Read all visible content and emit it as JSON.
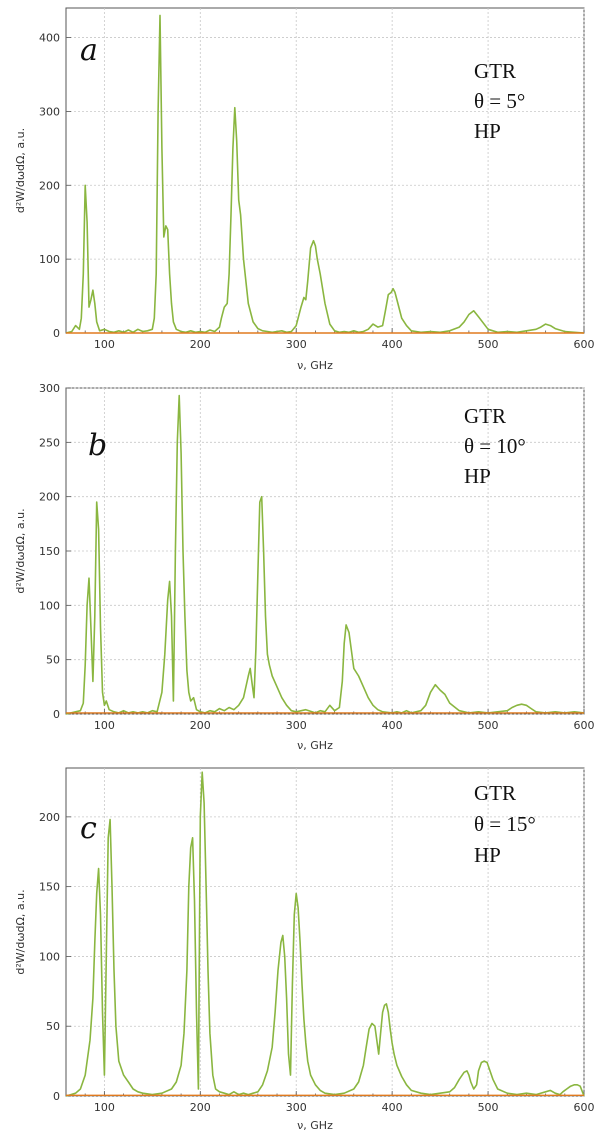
{
  "chart_data": [
    {
      "type": "line",
      "panel_label": "a",
      "annotation": [
        "GTR",
        "θ = 5°",
        "HP"
      ],
      "xlabel": "ν, GHz",
      "ylabel": "d²W/dωdΩ, a.u.",
      "xlim": [
        60,
        600
      ],
      "ylim": [
        0,
        440
      ],
      "xticks": [
        100,
        200,
        300,
        400,
        500,
        600
      ],
      "yticks": [
        0,
        100,
        200,
        300,
        400
      ],
      "grid": true,
      "colors": {
        "main": "#8ab640",
        "baseline": "#e07a1f"
      },
      "series": [
        {
          "x": [
            60,
            66,
            70,
            74,
            76,
            78,
            80,
            82,
            84,
            86,
            88,
            90,
            92,
            95,
            100,
            105,
            110,
            115,
            120,
            125,
            130,
            135,
            140,
            145,
            150,
            152,
            154,
            156,
            158,
            160,
            162,
            164,
            166,
            168,
            170,
            172,
            175,
            180,
            185,
            190,
            195,
            200,
            205,
            210,
            215,
            220,
            222,
            225,
            228,
            230,
            232,
            234,
            236,
            238,
            240,
            242,
            245,
            250,
            255,
            260,
            265,
            270,
            275,
            280,
            285,
            290,
            295,
            300,
            305,
            308,
            310,
            312,
            315,
            318,
            320,
            322,
            325,
            330,
            335,
            340,
            345,
            350,
            355,
            360,
            365,
            370,
            375,
            380,
            385,
            390,
            393,
            396,
            399,
            401,
            403,
            406,
            410,
            415,
            420,
            430,
            440,
            450,
            460,
            470,
            475,
            480,
            485,
            490,
            500,
            510,
            520,
            530,
            540,
            550,
            555,
            560,
            565,
            570,
            580,
            590,
            600
          ],
          "values": [
            0,
            2,
            10,
            5,
            20,
            80,
            200,
            150,
            35,
            45,
            58,
            40,
            15,
            3,
            5,
            2,
            1,
            3,
            1,
            4,
            1,
            5,
            2,
            3,
            5,
            20,
            80,
            300,
            430,
            250,
            130,
            145,
            140,
            80,
            40,
            15,
            5,
            2,
            1,
            3,
            1,
            2,
            1,
            4,
            2,
            8,
            20,
            35,
            40,
            80,
            160,
            250,
            305,
            260,
            180,
            160,
            100,
            40,
            15,
            6,
            3,
            2,
            1,
            2,
            3,
            1,
            2,
            10,
            35,
            48,
            45,
            70,
            115,
            125,
            118,
            100,
            80,
            40,
            12,
            3,
            1,
            2,
            1,
            3,
            1,
            2,
            5,
            12,
            8,
            10,
            30,
            52,
            55,
            60,
            55,
            40,
            20,
            10,
            3,
            1,
            2,
            1,
            3,
            8,
            15,
            25,
            30,
            22,
            5,
            1,
            2,
            1,
            3,
            5,
            8,
            12,
            10,
            6,
            2,
            1,
            0
          ]
        },
        {
          "x": [
            60,
            600
          ],
          "values": [
            0,
            0
          ]
        }
      ]
    },
    {
      "type": "line",
      "panel_label": "b",
      "annotation": [
        "GTR",
        "θ = 10°",
        "HP"
      ],
      "xlabel": "ν, GHz",
      "ylabel": "d²W/dωdΩ, a.u.",
      "xlim": [
        60,
        600
      ],
      "ylim": [
        0,
        300
      ],
      "xticks": [
        100,
        200,
        300,
        400,
        500,
        600
      ],
      "yticks": [
        0,
        50,
        100,
        150,
        200,
        250,
        300
      ],
      "grid": true,
      "colors": {
        "main": "#8ab640",
        "baseline": "#e07a1f"
      },
      "series": [
        {
          "x": [
            60,
            65,
            70,
            75,
            78,
            80,
            82,
            84,
            86,
            88,
            90,
            92,
            94,
            96,
            98,
            100,
            102,
            105,
            110,
            115,
            120,
            125,
            130,
            135,
            140,
            145,
            150,
            155,
            160,
            163,
            166,
            168,
            170,
            172,
            174,
            176,
            178,
            180,
            182,
            184,
            186,
            188,
            190,
            193,
            196,
            200,
            205,
            210,
            215,
            220,
            225,
            230,
            235,
            240,
            245,
            250,
            252,
            254,
            256,
            258,
            260,
            262,
            264,
            266,
            268,
            270,
            272,
            275,
            280,
            285,
            290,
            295,
            300,
            310,
            320,
            325,
            330,
            335,
            340,
            345,
            348,
            350,
            352,
            355,
            358,
            360,
            365,
            370,
            375,
            380,
            385,
            390,
            400,
            405,
            410,
            415,
            420,
            430,
            435,
            440,
            445,
            450,
            455,
            460,
            470,
            480,
            490,
            500,
            510,
            520,
            525,
            530,
            535,
            540,
            545,
            550,
            560,
            570,
            580,
            590,
            600
          ],
          "values": [
            0,
            1,
            2,
            3,
            10,
            45,
            100,
            125,
            80,
            30,
            90,
            195,
            170,
            80,
            20,
            8,
            12,
            4,
            2,
            1,
            3,
            1,
            2,
            1,
            2,
            1,
            3,
            2,
            20,
            55,
            105,
            122,
            90,
            12,
            150,
            250,
            293,
            240,
            150,
            90,
            40,
            20,
            12,
            15,
            4,
            2,
            1,
            3,
            2,
            5,
            3,
            6,
            4,
            8,
            15,
            35,
            42,
            28,
            15,
            60,
            130,
            195,
            200,
            150,
            90,
            55,
            45,
            35,
            25,
            15,
            8,
            3,
            2,
            4,
            1,
            3,
            2,
            8,
            3,
            6,
            30,
            65,
            82,
            75,
            55,
            42,
            35,
            25,
            15,
            8,
            4,
            2,
            1,
            2,
            1,
            3,
            1,
            3,
            8,
            20,
            27,
            22,
            18,
            10,
            3,
            1,
            2,
            1,
            2,
            3,
            6,
            8,
            9,
            8,
            5,
            2,
            1,
            2,
            1,
            2,
            1
          ]
        },
        {
          "x": [
            60,
            600
          ],
          "values": [
            1,
            1
          ]
        }
      ]
    },
    {
      "type": "line",
      "panel_label": "c",
      "annotation": [
        "GTR",
        "θ = 15°",
        "HP"
      ],
      "xlabel": "ν, GHz",
      "ylabel": "d²W/dωdΩ, a.u.",
      "xlim": [
        60,
        600
      ],
      "ylim": [
        0,
        235
      ],
      "xticks": [
        100,
        200,
        300,
        400,
        500,
        600
      ],
      "yticks": [
        0,
        50,
        100,
        150,
        200
      ],
      "grid": true,
      "colors": {
        "main": "#8ab640",
        "baseline": "#e07a1f"
      },
      "series": [
        {
          "x": [
            60,
            65,
            70,
            75,
            80,
            85,
            88,
            90,
            92,
            94,
            96,
            98,
            100,
            102,
            104,
            106,
            108,
            110,
            112,
            115,
            120,
            125,
            130,
            135,
            140,
            150,
            160,
            170,
            175,
            180,
            183,
            186,
            188,
            190,
            192,
            194,
            196,
            198,
            200,
            202,
            204,
            206,
            208,
            210,
            213,
            216,
            220,
            225,
            230,
            235,
            240,
            245,
            250,
            255,
            260,
            265,
            270,
            275,
            278,
            281,
            284,
            286,
            288,
            290,
            292,
            294,
            296,
            298,
            300,
            302,
            304,
            306,
            308,
            310,
            312,
            315,
            320,
            325,
            330,
            340,
            350,
            360,
            365,
            370,
            373,
            376,
            379,
            382,
            384,
            386,
            388,
            390,
            392,
            394,
            396,
            398,
            400,
            402,
            405,
            410,
            415,
            420,
            430,
            440,
            450,
            460,
            465,
            470,
            475,
            478,
            480,
            482,
            485,
            488,
            490,
            493,
            496,
            499,
            502,
            505,
            510,
            520,
            530,
            540,
            550,
            560,
            565,
            570,
            575,
            578,
            582,
            586,
            590,
            593,
            596,
            600
          ],
          "values": [
            0,
            1,
            2,
            5,
            15,
            40,
            70,
            110,
            145,
            163,
            130,
            60,
            15,
            100,
            185,
            198,
            150,
            90,
            50,
            25,
            15,
            10,
            5,
            3,
            2,
            1,
            2,
            5,
            10,
            22,
            45,
            90,
            150,
            178,
            185,
            140,
            60,
            5,
            200,
            232,
            210,
            150,
            90,
            45,
            15,
            5,
            3,
            2,
            1,
            3,
            1,
            2,
            1,
            2,
            3,
            8,
            18,
            35,
            60,
            90,
            110,
            115,
            100,
            70,
            30,
            15,
            80,
            130,
            145,
            135,
            110,
            80,
            55,
            38,
            25,
            15,
            8,
            4,
            2,
            1,
            2,
            5,
            10,
            22,
            35,
            48,
            52,
            50,
            40,
            30,
            45,
            60,
            65,
            66,
            60,
            48,
            38,
            30,
            22,
            14,
            8,
            4,
            2,
            1,
            2,
            3,
            6,
            12,
            17,
            18,
            15,
            10,
            5,
            8,
            18,
            24,
            25,
            24,
            18,
            12,
            5,
            2,
            1,
            2,
            1,
            3,
            4,
            2,
            1,
            3,
            5,
            7,
            8,
            8,
            7,
            0
          ]
        },
        {
          "x": [
            60,
            600
          ],
          "values": [
            0.5,
            0.5
          ]
        }
      ]
    }
  ]
}
